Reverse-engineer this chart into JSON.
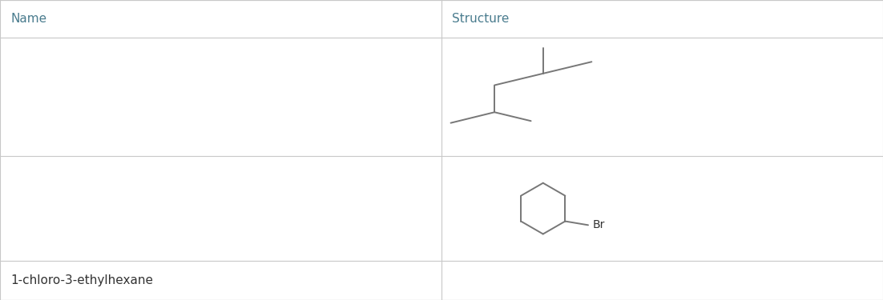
{
  "table_color": "#ffffff",
  "border_color": "#c8c8c8",
  "header_color": "#4a7c8e",
  "text_color": "#333333",
  "bond_color": "#777777",
  "col_split": 0.5,
  "headers": [
    "Name",
    "Structure"
  ],
  "row3_name": "1-chloro-3-ethylhexane",
  "fig_width": 11.02,
  "fig_height": 3.75,
  "row_tops": [
    1.0,
    0.875,
    0.48,
    0.13
  ],
  "row_bottoms": [
    0.875,
    0.48,
    0.13,
    0.0
  ]
}
